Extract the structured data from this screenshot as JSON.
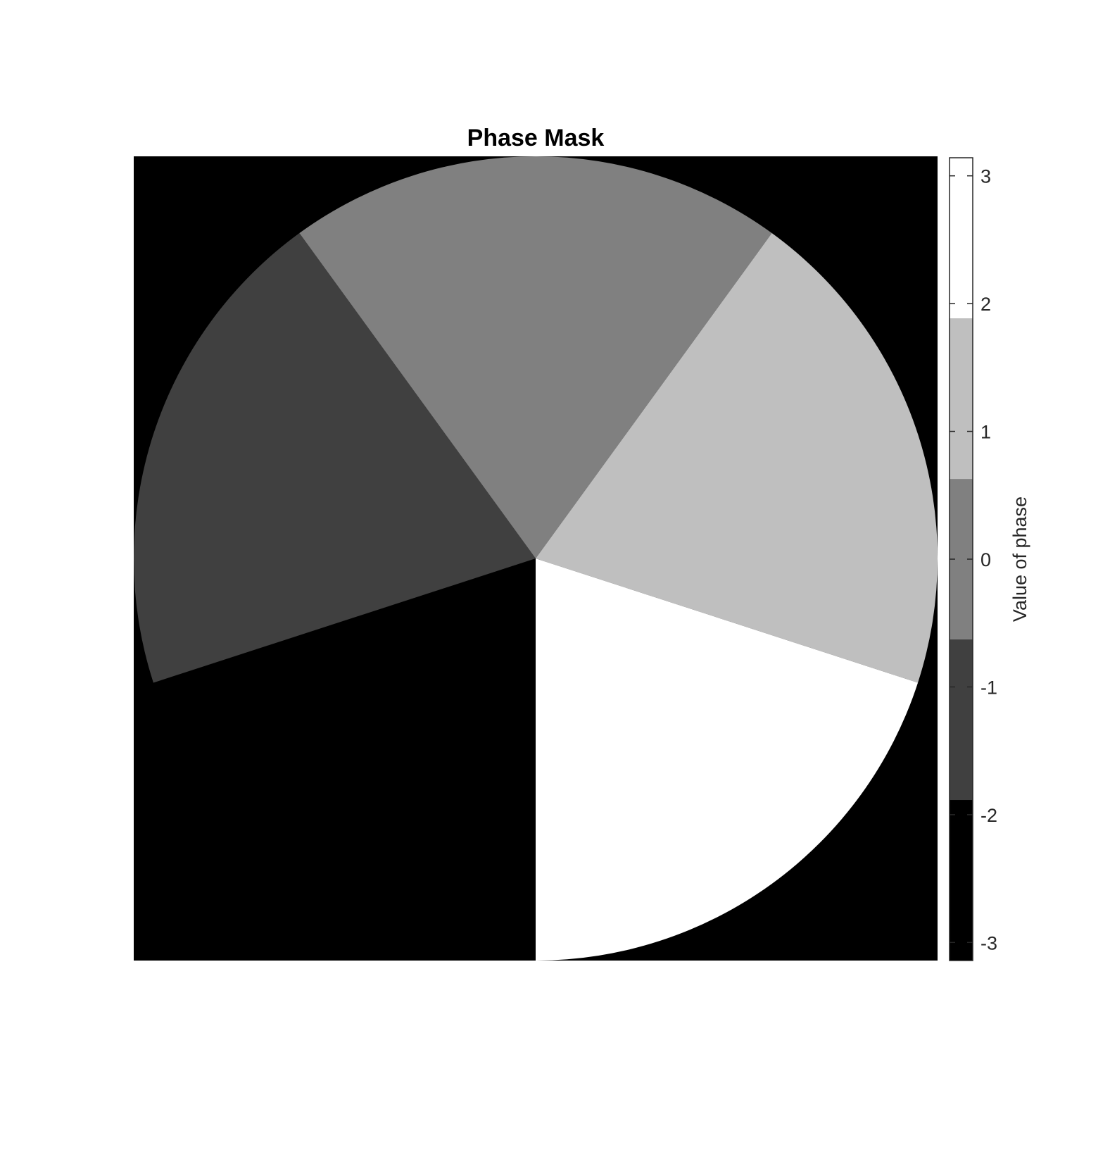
{
  "chart_data": {
    "type": "heatmap",
    "title": "Phase Mask",
    "description_of_layout": "",
    "aperture": "circular",
    "sectors": [
      {
        "start_deg": 90,
        "end_deg": 162,
        "value": -3.1416,
        "color": "#000000"
      },
      {
        "start_deg": 162,
        "end_deg": 234,
        "value": -1.2566,
        "color": "#404040"
      },
      {
        "start_deg": 234,
        "end_deg": 306,
        "value": 0.0,
        "color": "#808080"
      },
      {
        "start_deg": 306,
        "end_deg": 378,
        "value": 1.2566,
        "color": "#bfbfbf"
      },
      {
        "start_deg": 378,
        "end_deg": 450,
        "value": 3.1416,
        "color": "#ffffff"
      }
    ],
    "background_color": "#000000",
    "colorbar": {
      "label": "Value of phase",
      "range": [
        -3.1416,
        3.1416
      ],
      "ticks": [
        -3,
        -2,
        -1,
        0,
        1,
        2,
        3
      ],
      "tick_labels": [
        "-3",
        "-2",
        "-1",
        "0",
        "1",
        "2",
        "3"
      ],
      "levels": [
        {
          "from": -3.1416,
          "to": -1.885,
          "color": "#000000"
        },
        {
          "from": -1.885,
          "to": -0.628,
          "color": "#404040"
        },
        {
          "from": -0.628,
          "to": 0.628,
          "color": "#808080"
        },
        {
          "from": 0.628,
          "to": 1.885,
          "color": "#bfbfbf"
        },
        {
          "from": 1.885,
          "to": 3.1416,
          "color": "#ffffff"
        }
      ]
    }
  }
}
